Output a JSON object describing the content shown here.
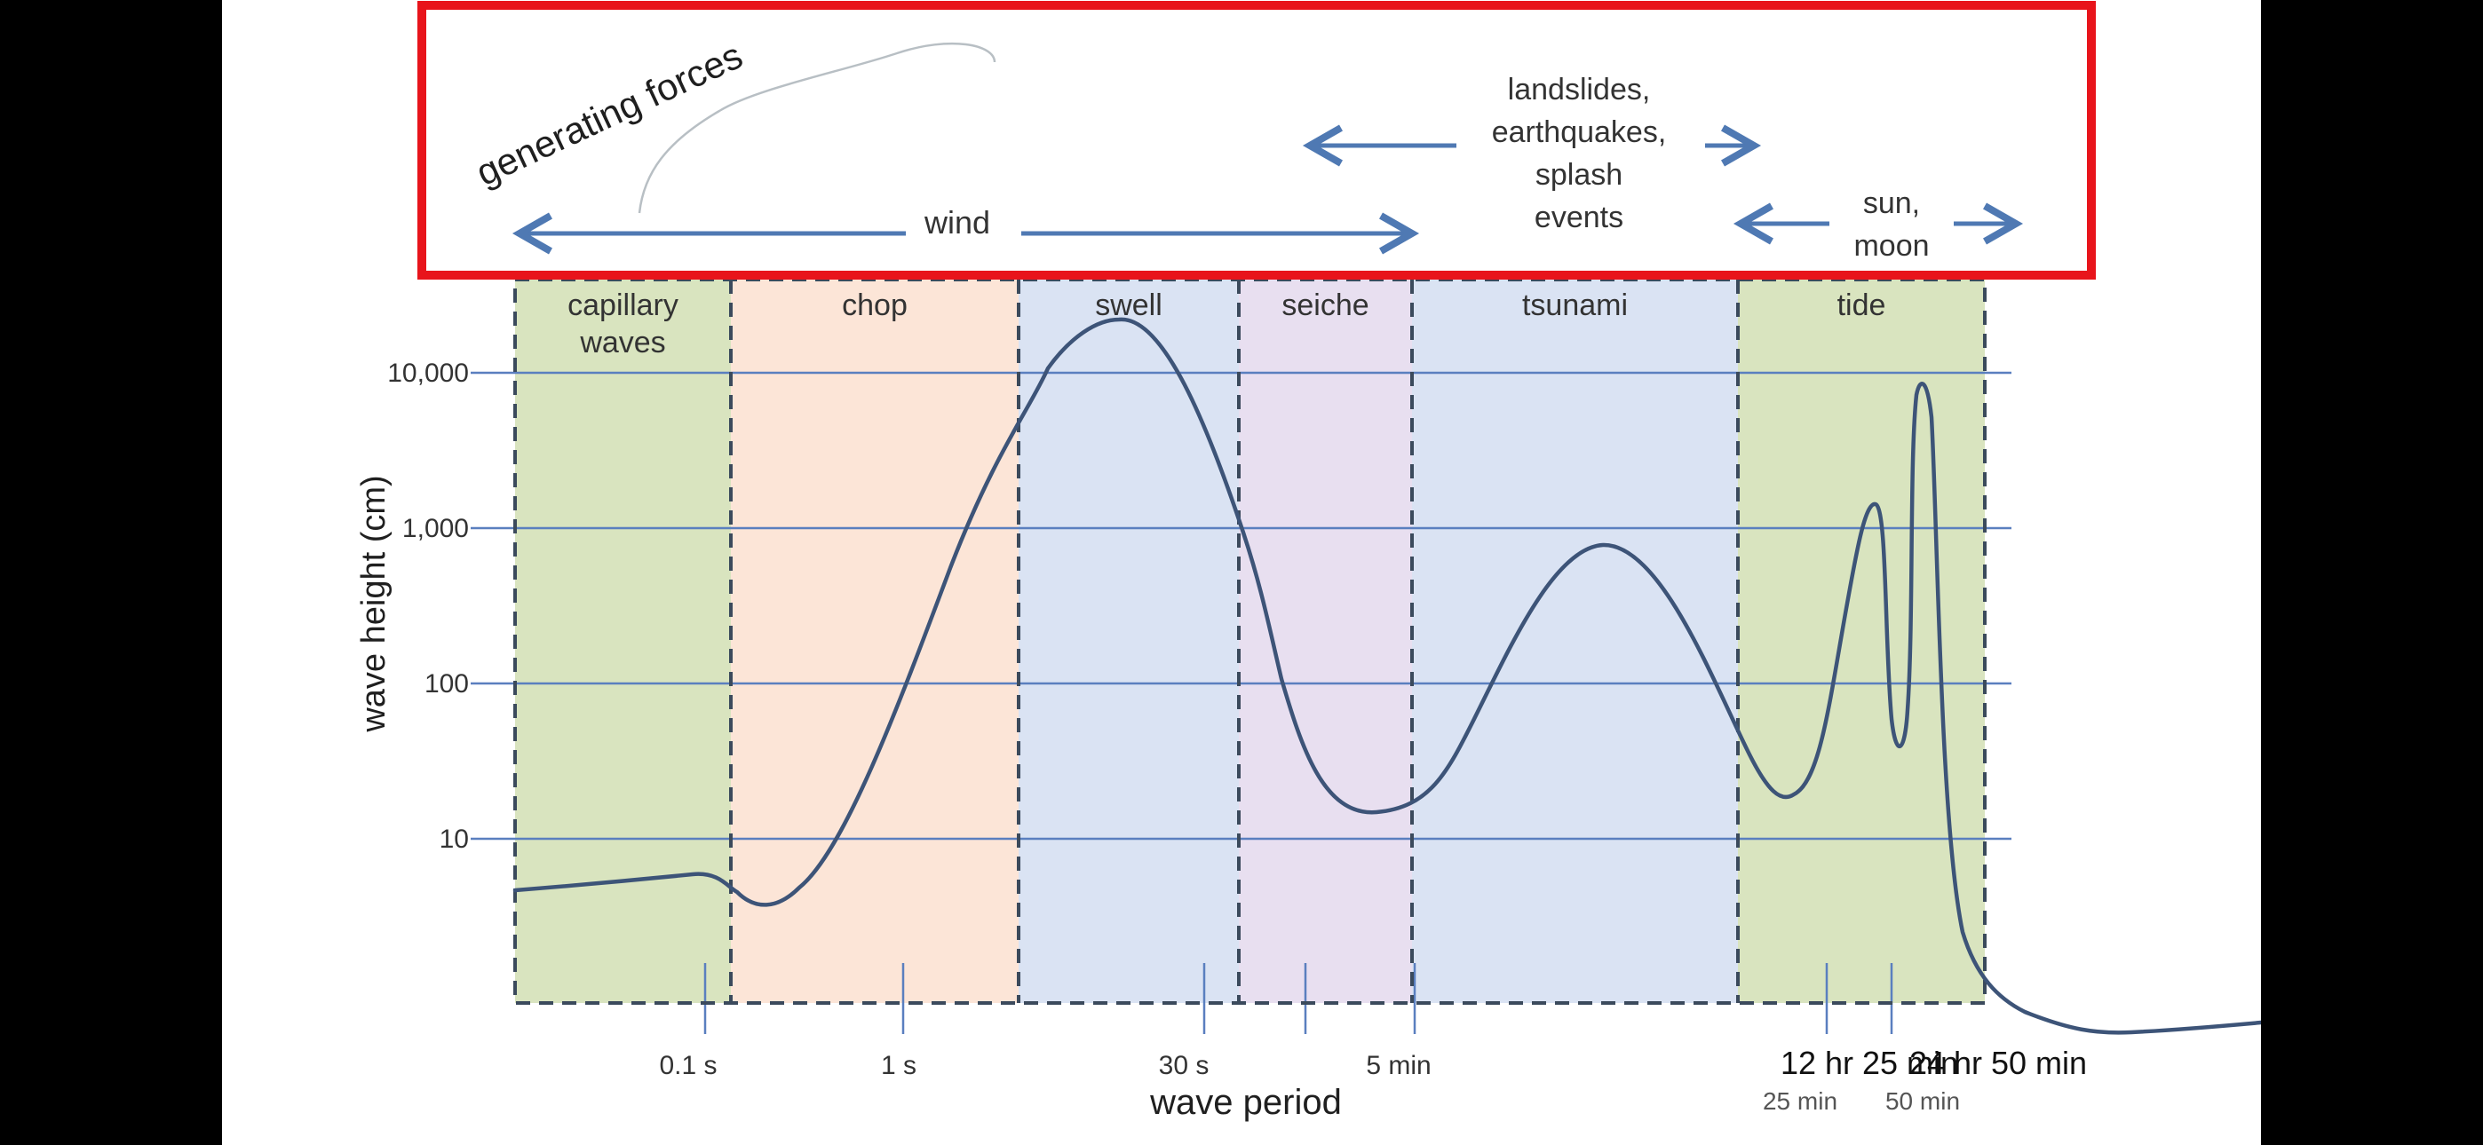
{
  "forces": {
    "label": "generating forces",
    "wind": "wind",
    "geologic": [
      "landslides,",
      "earthquakes,",
      "splash",
      "events"
    ],
    "celestial": [
      "sun,",
      "moon"
    ]
  },
  "chart_data": {
    "type": "line",
    "title": "",
    "xlabel": "wave period",
    "ylabel": "wave height (cm)",
    "y_scale": "log",
    "y_ticks": [
      {
        "value": 10,
        "label": "10"
      },
      {
        "value": 100,
        "label": "100"
      },
      {
        "value": 1000,
        "label": "1,000"
      },
      {
        "value": 10000,
        "label": "10,000"
      }
    ],
    "x_ticks": [
      "0.1 s",
      "1 s",
      "30 s",
      "5 min",
      "12 hr 25 min",
      "24 hr 50 min"
    ],
    "x_tick_sublabels": [
      "25 min",
      "50 min"
    ],
    "bands": [
      {
        "name": "capillary waves",
        "lines": [
          "capillary",
          "waves"
        ],
        "color": "#d9e4bf"
      },
      {
        "name": "chop",
        "lines": [
          "chop"
        ],
        "color": "#fce5d7"
      },
      {
        "name": "swell",
        "lines": [
          "swell"
        ],
        "color": "#dae3f3"
      },
      {
        "name": "seiche",
        "lines": [
          "seiche"
        ],
        "color": "#e8dff0"
      },
      {
        "name": "tsunami",
        "lines": [
          "tsunami"
        ],
        "color": "#dae3f3"
      },
      {
        "name": "tide",
        "lines": [
          "tide"
        ],
        "color": "#d9e4bf"
      }
    ],
    "curve_peaks": [
      {
        "band": "swell",
        "height_cm": 17000
      },
      {
        "band": "seiche",
        "height_cm": 15
      },
      {
        "band": "tsunami",
        "height_cm": 900
      },
      {
        "band": "tide",
        "height_cm": 1600
      },
      {
        "band": "tide",
        "height_cm": 8000
      }
    ],
    "colors": {
      "curve": "#3d5478",
      "gridline": "#5a7fbf",
      "arrow": "#4f79b3",
      "frame": "#e8141b",
      "band_border": "#3b4a5c"
    }
  }
}
